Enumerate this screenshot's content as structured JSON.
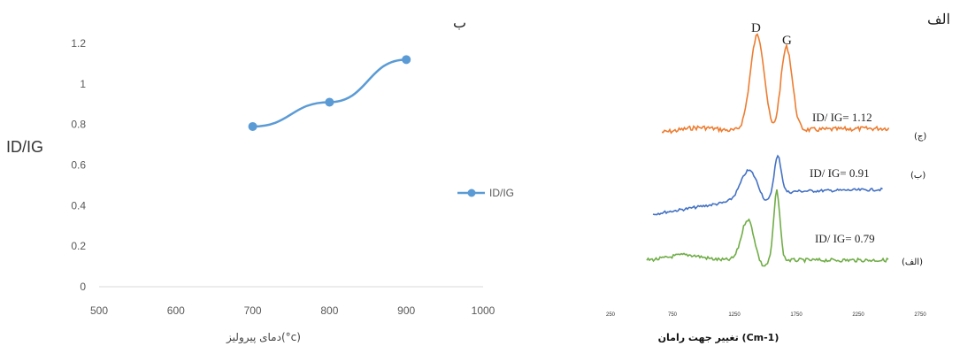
{
  "panels": {
    "a_label": "الف",
    "b_label": "ب"
  },
  "chart_data": [
    {
      "type": "line",
      "panel": "ب",
      "x": [
        700,
        800,
        900
      ],
      "series": [
        {
          "name": "ID/IG",
          "values": [
            0.79,
            0.91,
            1.12
          ],
          "color": "#5b9bd5"
        }
      ],
      "xlabel": "دمای پیرولیز(°c)",
      "ylabel": "ID/IG",
      "xlim": [
        500,
        1000
      ],
      "ylim": [
        0,
        1.2
      ],
      "xticks": [
        "500",
        "600",
        "700",
        "800",
        "900",
        "1000"
      ],
      "yticks": [
        "0",
        "0.2",
        "0.4",
        "0.6",
        "0.8",
        "1",
        "1.2"
      ],
      "legend_position": "right",
      "grid": false
    },
    {
      "type": "line",
      "panel": "الف",
      "xlabel": "تغییر جهت رامان (Cm-1)",
      "xticks": [
        "250",
        "750",
        "1250",
        "1750",
        "2250",
        "2750"
      ],
      "xlim": [
        250,
        2750
      ],
      "peaks": [
        "D",
        "G"
      ],
      "series": [
        {
          "label": "(ج)",
          "ratio_text": "ID/ IG= 1.12",
          "id_ig": 1.12,
          "color": "#ed7d31"
        },
        {
          "label": "(ب)",
          "ratio_text": "ID/ IG= 0.91",
          "id_ig": 0.91,
          "color": "#4472c4"
        },
        {
          "label": "(الف)",
          "ratio_text": "ID/ IG= 0.79",
          "id_ig": 0.79,
          "color": "#70ad47"
        }
      ]
    }
  ]
}
